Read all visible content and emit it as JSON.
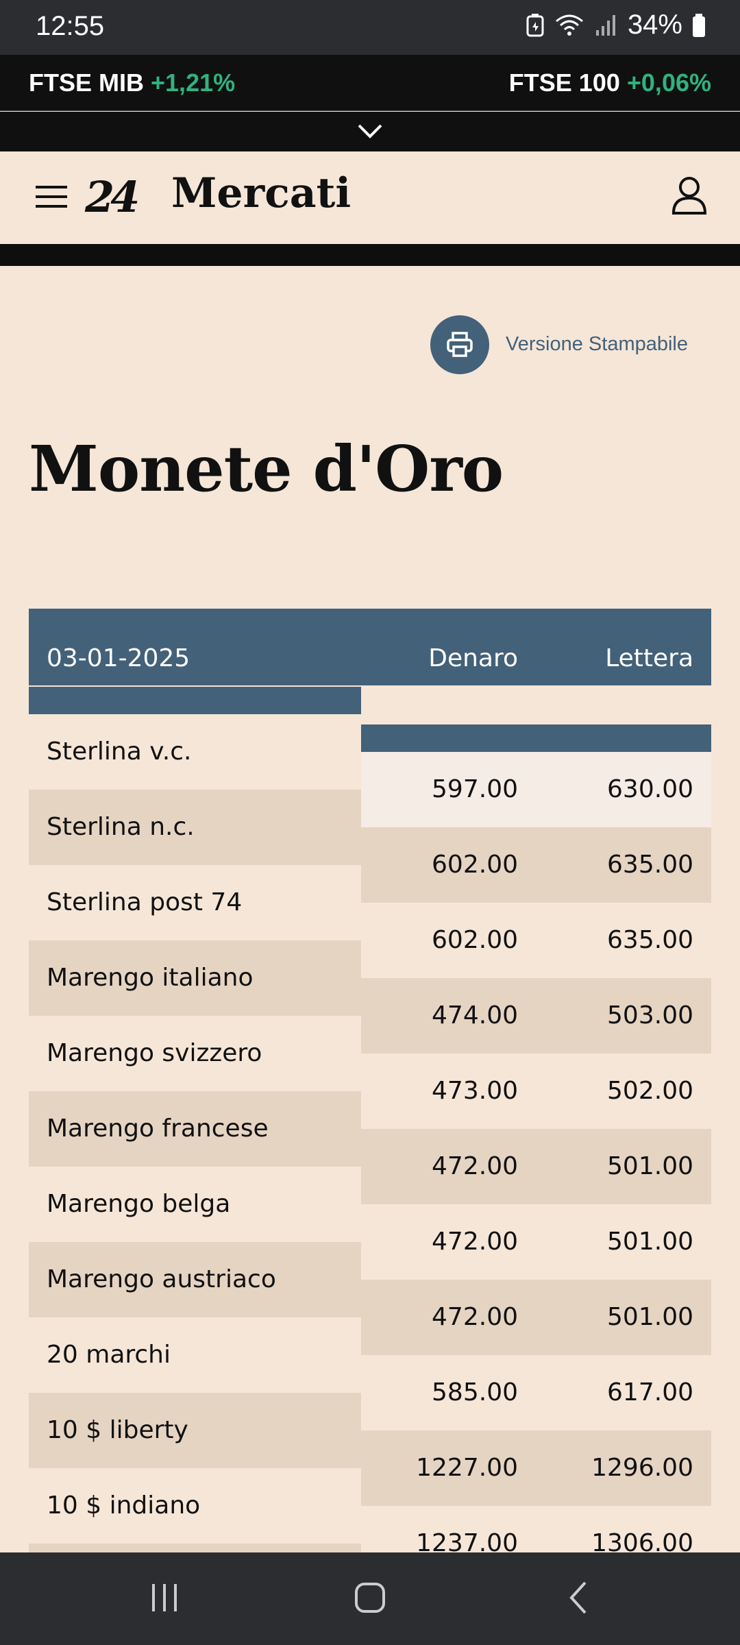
{
  "status_bar": {
    "time": "12:55",
    "battery": "34%"
  },
  "ticker": {
    "left_name": "FTSE MIB",
    "left_change": "+1,21%",
    "right_name": "FTSE 100",
    "right_change": "+0,06%"
  },
  "header": {
    "section": "Mercati",
    "logo": "24"
  },
  "print": {
    "label": "Versione Stampabile"
  },
  "page_title": "Monete d'Oro",
  "table": {
    "date": "03-01-2025",
    "col_bid": "Denaro",
    "col_ask": "Lettera",
    "rows": [
      {
        "name": "Sterlina v.c.",
        "bid": "597.00",
        "ask": "630.00"
      },
      {
        "name": "Sterlina n.c.",
        "bid": "602.00",
        "ask": "635.00"
      },
      {
        "name": "Sterlina post 74",
        "bid": "602.00",
        "ask": "635.00"
      },
      {
        "name": "Marengo italiano",
        "bid": "474.00",
        "ask": "503.00"
      },
      {
        "name": "Marengo svizzero",
        "bid": "473.00",
        "ask": "502.00"
      },
      {
        "name": "Marengo francese",
        "bid": "472.00",
        "ask": "501.00"
      },
      {
        "name": "Marengo belga",
        "bid": "472.00",
        "ask": "501.00"
      },
      {
        "name": "Marengo austriaco",
        "bid": "472.00",
        "ask": "501.00"
      },
      {
        "name": "20 marchi",
        "bid": "585.00",
        "ask": "617.00"
      },
      {
        "name": "10 $ liberty",
        "bid": "1227.00",
        "ask": "1296.00"
      },
      {
        "name": "10 $ indiano",
        "bid": "1237.00",
        "ask": "1306.00"
      }
    ]
  },
  "colors": {
    "accent": "#436179",
    "background": "#f5e6d8",
    "row_alt": "#e6d4c3",
    "positive": "#2fb37f"
  }
}
